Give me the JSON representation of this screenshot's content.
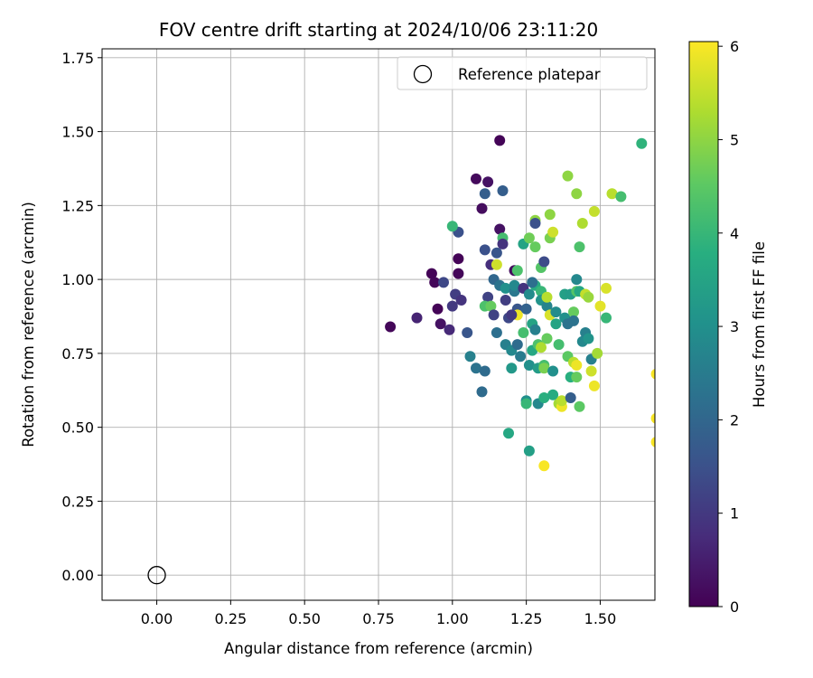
{
  "chart_data": {
    "type": "scatter",
    "title": "FOV centre drift starting at 2024/10/06 23:11:20",
    "xlabel": "Angular distance from reference (arcmin)",
    "ylabel": "Rotation from reference (arcmin)",
    "xlim": [
      -0.185,
      1.685
    ],
    "ylim": [
      -0.085,
      1.78
    ],
    "xticks": [
      "0.00",
      "0.25",
      "0.50",
      "0.75",
      "1.00",
      "1.25",
      "1.50"
    ],
    "xtick_values": [
      0,
      0.25,
      0.5,
      0.75,
      1.0,
      1.25,
      1.5
    ],
    "yticks": [
      "0.00",
      "0.25",
      "0.50",
      "0.75",
      "1.00",
      "1.25",
      "1.50",
      "1.75"
    ],
    "ytick_values": [
      0,
      0.25,
      0.5,
      0.75,
      1.0,
      1.25,
      1.5,
      1.75
    ],
    "grid": true,
    "colormap": "viridis",
    "colorbar": {
      "label": "Hours from first FF file",
      "range": [
        0,
        6.05
      ],
      "ticks": [
        "0",
        "1",
        "2",
        "3",
        "4",
        "5",
        "6"
      ],
      "tick_values": [
        0,
        1,
        2,
        3,
        4,
        5,
        6
      ]
    },
    "legend": {
      "position": "top-right",
      "entries": [
        "Reference platepar"
      ]
    },
    "reference_point": {
      "x": 0.0,
      "y": 0.0
    },
    "points": [
      [
        0.79,
        0.84,
        0.1
      ],
      [
        0.88,
        0.87,
        0.6
      ],
      [
        0.93,
        1.02,
        0.05
      ],
      [
        0.94,
        0.99,
        0.1
      ],
      [
        0.95,
        0.9,
        0.05
      ],
      [
        0.96,
        0.85,
        0.3
      ],
      [
        0.97,
        0.99,
        1.3
      ],
      [
        0.99,
        0.83,
        0.7
      ],
      [
        1.0,
        0.91,
        1.0
      ],
      [
        1.01,
        0.95,
        1.1
      ],
      [
        1.02,
        1.02,
        0.1
      ],
      [
        1.02,
        1.07,
        0.05
      ],
      [
        1.03,
        0.93,
        0.9
      ],
      [
        1.02,
        1.16,
        1.5
      ],
      [
        1.0,
        1.18,
        4.0
      ],
      [
        1.05,
        0.82,
        1.6
      ],
      [
        1.06,
        0.74,
        2.6
      ],
      [
        1.08,
        0.7,
        2.3
      ],
      [
        1.08,
        1.34,
        0.15
      ],
      [
        1.1,
        1.24,
        0.2
      ],
      [
        1.1,
        0.62,
        2.1
      ],
      [
        1.11,
        1.29,
        1.8
      ],
      [
        1.12,
        1.33,
        0.3
      ],
      [
        1.13,
        1.05,
        0.8
      ],
      [
        1.12,
        0.94,
        1.2
      ],
      [
        1.11,
        0.69,
        2.1
      ],
      [
        1.11,
        0.91,
        4.3
      ],
      [
        1.11,
        1.1,
        1.5
      ],
      [
        1.13,
        0.91,
        4.6
      ],
      [
        1.14,
        0.88,
        1.2
      ],
      [
        1.14,
        1.0,
        2.0
      ],
      [
        1.15,
        1.05,
        5.6
      ],
      [
        1.15,
        0.82,
        2.2
      ],
      [
        1.16,
        1.47,
        0.05
      ],
      [
        1.16,
        1.17,
        0.3
      ],
      [
        1.15,
        1.09,
        1.6
      ],
      [
        1.16,
        0.98,
        2.3
      ],
      [
        1.17,
        1.14,
        4.2
      ],
      [
        1.17,
        1.3,
        1.8
      ],
      [
        1.17,
        1.12,
        0.9
      ],
      [
        1.18,
        0.97,
        3.0
      ],
      [
        1.18,
        0.93,
        1.1
      ],
      [
        1.18,
        0.78,
        2.6
      ],
      [
        1.19,
        0.48,
        3.6
      ],
      [
        1.19,
        0.87,
        1.3
      ],
      [
        1.2,
        0.7,
        3.2
      ],
      [
        1.2,
        0.76,
        2.8
      ],
      [
        1.21,
        1.03,
        0.2
      ],
      [
        1.21,
        0.96,
        2.4
      ],
      [
        1.21,
        0.98,
        2.8
      ],
      [
        1.22,
        0.9,
        1.6
      ],
      [
        1.22,
        0.88,
        5.9
      ],
      [
        1.22,
        1.03,
        4.3
      ],
      [
        1.22,
        0.78,
        2.1
      ],
      [
        1.23,
        0.74,
        2.5
      ],
      [
        1.24,
        1.12,
        3.5
      ],
      [
        1.24,
        0.97,
        0.9
      ],
      [
        1.24,
        0.82,
        4.2
      ],
      [
        1.25,
        0.59,
        3.0
      ],
      [
        1.25,
        0.58,
        4.0
      ],
      [
        1.26,
        0.71,
        3.0
      ],
      [
        1.26,
        0.42,
        3.4
      ],
      [
        1.26,
        1.14,
        4.7
      ],
      [
        1.26,
        0.95,
        2.9
      ],
      [
        1.27,
        0.76,
        3.6
      ],
      [
        1.27,
        0.85,
        3.5
      ],
      [
        1.28,
        0.98,
        3.7
      ],
      [
        1.28,
        0.83,
        2.6
      ],
      [
        1.28,
        1.2,
        5.0
      ],
      [
        1.28,
        1.19,
        1.5
      ],
      [
        1.28,
        1.11,
        4.6
      ],
      [
        1.29,
        0.78,
        4.3
      ],
      [
        1.29,
        0.7,
        3.3
      ],
      [
        1.29,
        0.58,
        2.8
      ],
      [
        1.3,
        0.96,
        4.0
      ],
      [
        1.3,
        0.77,
        5.3
      ],
      [
        1.3,
        1.04,
        4.4
      ],
      [
        1.3,
        0.93,
        3.1
      ],
      [
        1.31,
        0.6,
        3.8
      ],
      [
        1.31,
        0.37,
        6.0
      ],
      [
        1.31,
        1.06,
        1.4
      ],
      [
        1.31,
        0.71,
        4.2
      ],
      [
        1.31,
        0.7,
        4.8
      ],
      [
        1.32,
        0.91,
        2.7
      ],
      [
        1.32,
        0.8,
        4.6
      ],
      [
        1.32,
        0.94,
        5.4
      ],
      [
        1.33,
        0.88,
        5.7
      ],
      [
        1.33,
        1.22,
        5.0
      ],
      [
        1.33,
        1.14,
        4.8
      ],
      [
        1.34,
        0.69,
        3.0
      ],
      [
        1.34,
        0.61,
        3.7
      ],
      [
        1.34,
        1.16,
        5.6
      ],
      [
        1.35,
        0.85,
        3.5
      ],
      [
        1.35,
        0.89,
        2.9
      ],
      [
        1.36,
        0.58,
        5.2
      ],
      [
        1.36,
        0.78,
        4.2
      ],
      [
        1.37,
        0.57,
        5.9
      ],
      [
        1.37,
        0.59,
        5.4
      ],
      [
        1.38,
        0.95,
        3.4
      ],
      [
        1.38,
        0.87,
        3.0
      ],
      [
        1.39,
        1.35,
        5.0
      ],
      [
        1.39,
        0.85,
        2.3
      ],
      [
        1.39,
        0.74,
        4.5
      ],
      [
        1.4,
        0.95,
        3.3
      ],
      [
        1.4,
        0.67,
        3.8
      ],
      [
        1.4,
        0.6,
        1.8
      ],
      [
        1.41,
        0.89,
        4.6
      ],
      [
        1.41,
        0.86,
        2.3
      ],
      [
        1.41,
        0.72,
        5.4
      ],
      [
        1.42,
        0.96,
        4.4
      ],
      [
        1.42,
        1.29,
        5.0
      ],
      [
        1.42,
        0.67,
        4.6
      ],
      [
        1.42,
        0.71,
        5.9
      ],
      [
        1.42,
        1.0,
        2.8
      ],
      [
        1.43,
        0.57,
        4.5
      ],
      [
        1.43,
        0.96,
        3.6
      ],
      [
        1.43,
        1.11,
        4.3
      ],
      [
        1.44,
        1.19,
        5.3
      ],
      [
        1.44,
        0.79,
        2.8
      ],
      [
        1.45,
        0.82,
        2.6
      ],
      [
        1.45,
        0.95,
        5.5
      ],
      [
        1.46,
        0.8,
        3.1
      ],
      [
        1.46,
        0.94,
        5.1
      ],
      [
        1.47,
        0.73,
        2.6
      ],
      [
        1.47,
        0.69,
        5.6
      ],
      [
        1.48,
        1.23,
        5.5
      ],
      [
        1.48,
        0.64,
        5.9
      ],
      [
        1.49,
        0.75,
        5.2
      ],
      [
        1.5,
        0.91,
        5.8
      ],
      [
        1.52,
        0.97,
        5.7
      ],
      [
        1.52,
        0.87,
        4.0
      ],
      [
        1.54,
        1.29,
        5.4
      ],
      [
        1.57,
        1.28,
        4.2
      ],
      [
        1.64,
        1.46,
        3.9
      ],
      [
        1.69,
        0.68,
        6.0
      ],
      [
        1.69,
        0.53,
        6.0
      ],
      [
        1.69,
        0.45,
        6.0
      ],
      [
        1.2,
        0.88,
        1.0
      ],
      [
        1.25,
        0.9,
        1.9
      ],
      [
        1.27,
        0.99,
        2.2
      ]
    ]
  }
}
